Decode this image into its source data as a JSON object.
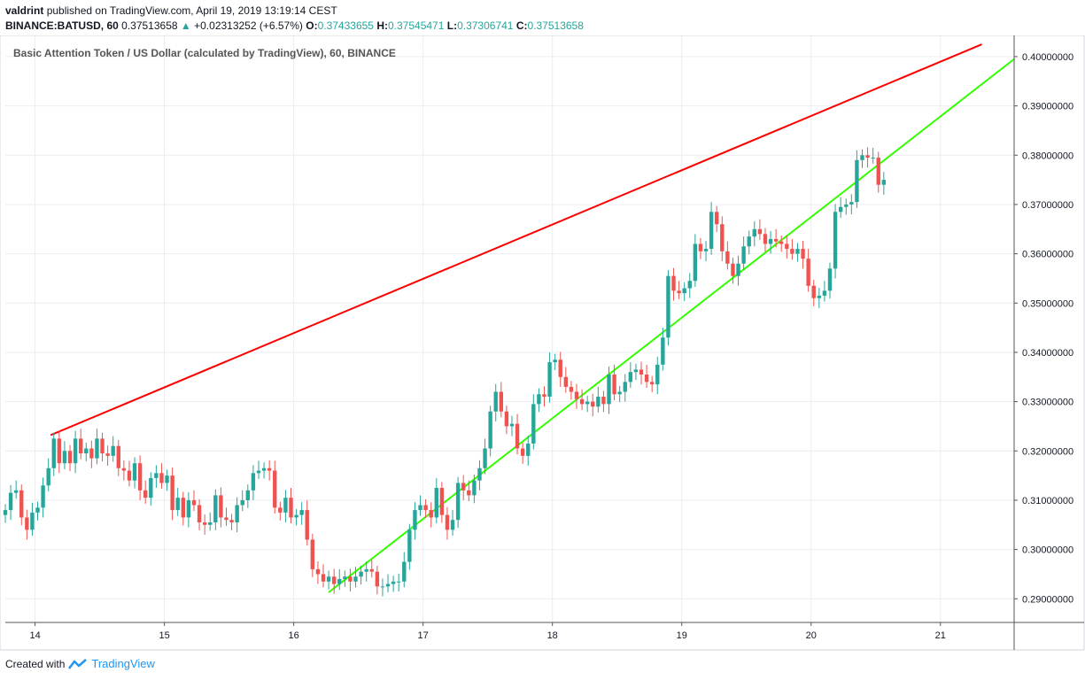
{
  "header": {
    "author": "valdrint",
    "published_text": "published on TradingView.com, April 19, 2019 13:19:14 CEST",
    "symbol": "BINANCE:BATUSD, 60",
    "last": "0.37513658",
    "change": "+0.02313252 (+6.57%)",
    "o_label": "O:",
    "o_val": "0.37433655",
    "h_label": "H:",
    "h_val": "0.37545471",
    "l_label": "L:",
    "l_val": "0.37306741",
    "c_label": "C:",
    "c_val": "0.37513658"
  },
  "footer": {
    "created_with": "Created with",
    "brand": "TradingView"
  },
  "colors": {
    "up": "#26a69a",
    "down": "#ef5350",
    "resistance": "#ff0000",
    "support": "#33ff00",
    "grid": "#e9eef3"
  },
  "chart_data": {
    "type": "candlestick",
    "title": "Basic Attention Token / US Dollar (calculated by TradingView), 60, BINANCE",
    "x_unit": "day of April 2019",
    "x_ticks": [
      14,
      15,
      16,
      17,
      18,
      19,
      20,
      21
    ],
    "xlim": [
      13.77,
      21.57
    ],
    "ylim": [
      0.2852,
      0.4043
    ],
    "y_ticks": [
      "0.29000000",
      "0.30000000",
      "0.31000000",
      "0.32000000",
      "0.33000000",
      "0.34000000",
      "0.35000000",
      "0.36000000",
      "0.37000000",
      "0.38000000",
      "0.39000000",
      "0.40000000"
    ],
    "grid": true,
    "trendlines": [
      {
        "name": "resistance",
        "color": "#ff0000",
        "points": [
          [
            14.12,
            0.3232
          ],
          [
            21.32,
            0.4025
          ]
        ]
      },
      {
        "name": "support",
        "color": "#33ff00",
        "points": [
          [
            16.27,
            0.2913
          ],
          [
            21.57,
            0.3995
          ]
        ]
      }
    ],
    "candles": {
      "start_x": 13.77,
      "step": 0.04167,
      "closes": [
        0.308,
        0.3115,
        0.312,
        0.3065,
        0.304,
        0.3075,
        0.3085,
        0.313,
        0.3165,
        0.3225,
        0.3175,
        0.32,
        0.3175,
        0.3225,
        0.3195,
        0.3205,
        0.3185,
        0.3225,
        0.3195,
        0.319,
        0.321,
        0.3165,
        0.316,
        0.314,
        0.3175,
        0.312,
        0.3105,
        0.3145,
        0.3155,
        0.3135,
        0.315,
        0.308,
        0.3105,
        0.3065,
        0.31,
        0.309,
        0.3055,
        0.305,
        0.3055,
        0.311,
        0.3065,
        0.306,
        0.3055,
        0.309,
        0.31,
        0.312,
        0.3155,
        0.316,
        0.3165,
        0.316,
        0.3085,
        0.3075,
        0.3105,
        0.3065,
        0.307,
        0.308,
        0.302,
        0.296,
        0.295,
        0.2935,
        0.2945,
        0.293,
        0.294,
        0.2945,
        0.2935,
        0.2945,
        0.2955,
        0.296,
        0.2955,
        0.2925,
        0.2925,
        0.293,
        0.2935,
        0.2935,
        0.2975,
        0.304,
        0.308,
        0.309,
        0.308,
        0.3065,
        0.3125,
        0.307,
        0.304,
        0.306,
        0.3135,
        0.312,
        0.311,
        0.314,
        0.3165,
        0.3205,
        0.328,
        0.332,
        0.328,
        0.325,
        0.3255,
        0.3205,
        0.319,
        0.3215,
        0.3295,
        0.3315,
        0.331,
        0.338,
        0.3385,
        0.335,
        0.333,
        0.332,
        0.3305,
        0.3295,
        0.33,
        0.329,
        0.331,
        0.3295,
        0.3355,
        0.3315,
        0.332,
        0.334,
        0.336,
        0.3365,
        0.3355,
        0.334,
        0.3335,
        0.3375,
        0.343,
        0.3555,
        0.3525,
        0.352,
        0.353,
        0.3545,
        0.362,
        0.3605,
        0.361,
        0.3685,
        0.366,
        0.3605,
        0.358,
        0.3555,
        0.358,
        0.3615,
        0.3635,
        0.365,
        0.364,
        0.362,
        0.363,
        0.3625,
        0.362,
        0.361,
        0.36,
        0.361,
        0.359,
        0.3535,
        0.351,
        0.3515,
        0.3525,
        0.357,
        0.3685,
        0.3695,
        0.37,
        0.3705,
        0.379,
        0.38,
        0.3795,
        0.3795,
        0.374,
        0.375
      ]
    }
  }
}
